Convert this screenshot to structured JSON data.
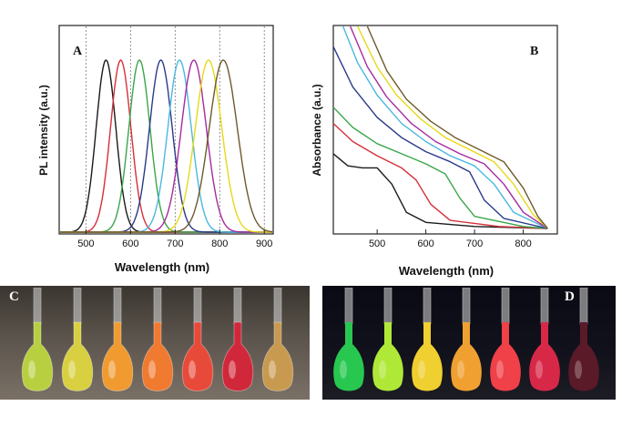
{
  "panel_labels": {
    "a": "A",
    "b": "B",
    "c": "C",
    "d": "D"
  },
  "chart_data": [
    {
      "panel": "A",
      "type": "line",
      "xlabel": "Wavelength (nm)",
      "ylabel": "PL intensity (a.u.)",
      "xlim": [
        440,
        920
      ],
      "xticks": [
        500,
        600,
        700,
        800,
        900
      ],
      "xtick_labels": [
        "500",
        "600",
        "700",
        "800",
        "900"
      ],
      "vertical_reference_lines": [
        500,
        600,
        700,
        800,
        900
      ],
      "series": [
        {
          "peak": 545,
          "fwhm": 52,
          "color": "#1a1a1a"
        },
        {
          "peak": 578,
          "fwhm": 54,
          "color": "#d62f3a"
        },
        {
          "peak": 620,
          "fwhm": 56,
          "color": "#3aa64a"
        },
        {
          "peak": 668,
          "fwhm": 60,
          "color": "#2a3a8a"
        },
        {
          "peak": 710,
          "fwhm": 62,
          "color": "#4ab8e0"
        },
        {
          "peak": 742,
          "fwhm": 66,
          "color": "#a62aa0"
        },
        {
          "peak": 775,
          "fwhm": 70,
          "color": "#e8d818"
        },
        {
          "peak": 808,
          "fwhm": 74,
          "color": "#6e5a2a"
        }
      ]
    },
    {
      "panel": "B",
      "type": "line",
      "xlabel": "Wavelength (nm)",
      "ylabel": "Absorbance (a.u.)",
      "xlim": [
        410,
        870
      ],
      "xticks": [
        500,
        600,
        700,
        800
      ],
      "xtick_labels": [
        "500",
        "600",
        "700",
        "800"
      ],
      "series": [
        {
          "color": "#1a1a1a",
          "points": [
            [
              410,
              0.37
            ],
            [
              440,
              0.31
            ],
            [
              470,
              0.3
            ],
            [
              500,
              0.3
            ],
            [
              530,
              0.22
            ],
            [
              560,
              0.08
            ],
            [
              600,
              0.03
            ],
            [
              700,
              0.01
            ],
            [
              850,
              0.0
            ]
          ]
        },
        {
          "color": "#d62f3a",
          "points": [
            [
              410,
              0.52
            ],
            [
              450,
              0.43
            ],
            [
              500,
              0.36
            ],
            [
              550,
              0.3
            ],
            [
              580,
              0.24
            ],
            [
              610,
              0.12
            ],
            [
              650,
              0.04
            ],
            [
              750,
              0.01
            ],
            [
              850,
              0.0
            ]
          ]
        },
        {
          "color": "#3aa64a",
          "points": [
            [
              410,
              0.6
            ],
            [
              450,
              0.5
            ],
            [
              500,
              0.42
            ],
            [
              550,
              0.37
            ],
            [
              600,
              0.32
            ],
            [
              640,
              0.27
            ],
            [
              670,
              0.15
            ],
            [
              700,
              0.06
            ],
            [
              800,
              0.01
            ],
            [
              850,
              0.0
            ]
          ]
        },
        {
          "color": "#2a3a8a",
          "points": [
            [
              410,
              0.9
            ],
            [
              450,
              0.7
            ],
            [
              500,
              0.55
            ],
            [
              550,
              0.45
            ],
            [
              600,
              0.38
            ],
            [
              650,
              0.33
            ],
            [
              690,
              0.28
            ],
            [
              720,
              0.14
            ],
            [
              760,
              0.05
            ],
            [
              850,
              0.0
            ]
          ]
        },
        {
          "color": "#4ab8e0",
          "points": [
            [
              430,
              1.0
            ],
            [
              460,
              0.82
            ],
            [
              500,
              0.66
            ],
            [
              550,
              0.52
            ],
            [
              600,
              0.43
            ],
            [
              650,
              0.36
            ],
            [
              700,
              0.31
            ],
            [
              740,
              0.22
            ],
            [
              780,
              0.08
            ],
            [
              850,
              0.0
            ]
          ]
        },
        {
          "color": "#a62aa0",
          "points": [
            [
              445,
              1.0
            ],
            [
              480,
              0.8
            ],
            [
              520,
              0.65
            ],
            [
              570,
              0.52
            ],
            [
              620,
              0.43
            ],
            [
              670,
              0.37
            ],
            [
              720,
              0.32
            ],
            [
              760,
              0.22
            ],
            [
              800,
              0.08
            ],
            [
              850,
              0.0
            ]
          ]
        },
        {
          "color": "#e8d818",
          "points": [
            [
              460,
              1.0
            ],
            [
              500,
              0.8
            ],
            [
              540,
              0.66
            ],
            [
              590,
              0.54
            ],
            [
              640,
              0.45
            ],
            [
              690,
              0.39
            ],
            [
              740,
              0.33
            ],
            [
              780,
              0.22
            ],
            [
              820,
              0.07
            ],
            [
              850,
              0.0
            ]
          ]
        },
        {
          "color": "#6e5a2a",
          "points": [
            [
              480,
              1.0
            ],
            [
              520,
              0.78
            ],
            [
              560,
              0.64
            ],
            [
              610,
              0.53
            ],
            [
              660,
              0.45
            ],
            [
              710,
              0.39
            ],
            [
              760,
              0.33
            ],
            [
              800,
              0.2
            ],
            [
              830,
              0.06
            ],
            [
              850,
              0.0
            ]
          ]
        }
      ]
    }
  ],
  "photos": {
    "c": {
      "flask_colors": [
        "#b8d040",
        "#d8d040",
        "#f09a30",
        "#f07a30",
        "#e84a3a",
        "#d0283a",
        "#c89a50"
      ]
    },
    "d": {
      "flask_colors": [
        "#28c850",
        "#b0e838",
        "#f0d030",
        "#f0a030",
        "#f04048",
        "#d82848",
        "#5a1a28"
      ]
    }
  }
}
